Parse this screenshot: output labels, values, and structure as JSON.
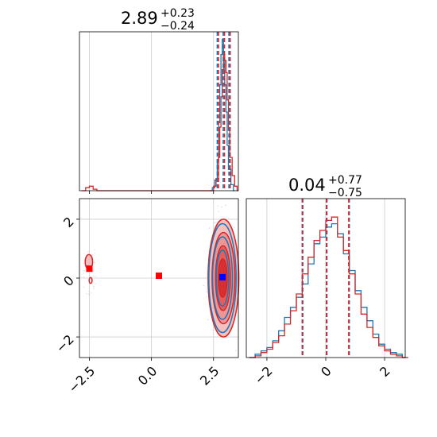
{
  "chart_data": [
    {
      "type": "histogram",
      "panel": "marginal-param-1",
      "title": "2.89",
      "title_sup": "+0.23",
      "title_sub": "−0.24",
      "xlim": [
        -2.9,
        3.5
      ],
      "xticks": [
        -2.5,
        0.0,
        2.5
      ],
      "quantile_lines": {
        "blue": [
          2.65,
          2.89,
          3.12
        ],
        "red": [
          2.7,
          2.94,
          3.17
        ]
      },
      "series": [
        {
          "color": "#1f77b4",
          "bins": [
            [
              2.35,
              0.0
            ],
            [
              2.45,
              0.02
            ],
            [
              2.55,
              0.07
            ],
            [
              2.65,
              0.2
            ],
            [
              2.7,
              0.45
            ],
            [
              2.75,
              0.7
            ],
            [
              2.8,
              0.9
            ],
            [
              2.85,
              1.0
            ],
            [
              2.9,
              0.88
            ],
            [
              2.95,
              0.7
            ],
            [
              3.0,
              0.52
            ],
            [
              3.05,
              0.3
            ],
            [
              3.1,
              0.14
            ],
            [
              3.2,
              0.04
            ],
            [
              3.3,
              0.0
            ]
          ]
        },
        {
          "color": "#d62728",
          "bins": [
            [
              -2.8,
              0.0
            ],
            [
              -2.65,
              0.02
            ],
            [
              -2.5,
              0.03
            ],
            [
              -2.35,
              0.01
            ],
            [
              -2.2,
              0.0
            ],
            [
              2.4,
              0.0
            ],
            [
              2.5,
              0.03
            ],
            [
              2.6,
              0.08
            ],
            [
              2.7,
              0.22
            ],
            [
              2.75,
              0.42
            ],
            [
              2.8,
              0.62
            ],
            [
              2.85,
              0.8
            ],
            [
              2.9,
              0.9
            ],
            [
              2.95,
              0.86
            ],
            [
              3.0,
              0.78
            ],
            [
              3.05,
              0.6
            ],
            [
              3.1,
              0.4
            ],
            [
              3.15,
              0.22
            ],
            [
              3.25,
              0.1
            ],
            [
              3.35,
              0.03
            ],
            [
              3.45,
              0.0
            ]
          ]
        }
      ]
    },
    {
      "type": "contour",
      "panel": "joint-density",
      "xlim": [
        -2.9,
        3.5
      ],
      "ylim": [
        -2.7,
        2.7
      ],
      "xticks": [
        -2.5,
        0.0,
        2.5
      ],
      "yticks": [
        -2,
        0,
        2
      ],
      "xtick_labels": [
        "−2.5",
        "0.0",
        "2.5"
      ],
      "ytick_labels": [
        "−2",
        "0",
        "2"
      ],
      "markers": [
        {
          "color": "#0000ff",
          "x": 2.86,
          "y": 0.03
        },
        {
          "color": "#ff0000",
          "x": -2.5,
          "y": 0.32
        },
        {
          "color": "#ff0000",
          "x": 0.3,
          "y": 0.08
        }
      ],
      "contours": [
        {
          "color": "#d62728",
          "cx": 2.9,
          "cy": 0.0,
          "rx": 0.62,
          "ry": 2.0,
          "fill": "#f4b5b6"
        },
        {
          "color": "#d62728",
          "cx": 2.9,
          "cy": 0.0,
          "rx": 0.46,
          "ry": 1.55,
          "fill": "#ec8d8e"
        },
        {
          "color": "#d62728",
          "cx": 2.88,
          "cy": 0.0,
          "rx": 0.3,
          "ry": 1.1,
          "fill": "#e25354"
        },
        {
          "color": "#d62728",
          "cx": 2.87,
          "cy": 0.0,
          "rx": 0.18,
          "ry": 0.65,
          "fill": "#d62728"
        },
        {
          "color": "#1f77b4",
          "cx": 2.86,
          "cy": 0.0,
          "rx": 0.55,
          "ry": 1.85,
          "fill": "none"
        },
        {
          "color": "#1f77b4",
          "cx": 2.86,
          "cy": 0.0,
          "rx": 0.4,
          "ry": 1.4,
          "fill": "none"
        },
        {
          "color": "#1f77b4",
          "cx": 2.86,
          "cy": 0.0,
          "rx": 0.25,
          "ry": 0.95,
          "fill": "none"
        },
        {
          "color": "#d62728",
          "cx": -2.52,
          "cy": 0.55,
          "rx": 0.15,
          "ry": 0.25,
          "fill": "#f4b5b6"
        },
        {
          "color": "#d62728",
          "cx": -2.45,
          "cy": -0.08,
          "rx": 0.06,
          "ry": 0.1,
          "fill": "none"
        }
      ]
    },
    {
      "type": "histogram",
      "panel": "marginal-param-2",
      "title": "0.04",
      "title_sup": "+0.77",
      "title_sub": "−0.75",
      "xlim": [
        -2.7,
        2.7
      ],
      "xticks": [
        -2,
        0,
        2
      ],
      "xtick_labels": [
        "−2",
        "0",
        "2"
      ],
      "quantile_lines": {
        "blue": [
          -0.78,
          0.04,
          0.8
        ],
        "red": [
          -0.8,
          0.02,
          0.78
        ]
      },
      "series": [
        {
          "color": "#1f77b4",
          "bins": [
            [
              -2.6,
              0.0
            ],
            [
              -2.4,
              0.02
            ],
            [
              -2.2,
              0.04
            ],
            [
              -2.0,
              0.06
            ],
            [
              -1.8,
              0.1
            ],
            [
              -1.6,
              0.16
            ],
            [
              -1.4,
              0.24
            ],
            [
              -1.2,
              0.3
            ],
            [
              -1.0,
              0.36
            ],
            [
              -0.8,
              0.44
            ],
            [
              -0.6,
              0.56
            ],
            [
              -0.4,
              0.68
            ],
            [
              -0.2,
              0.72
            ],
            [
              0.0,
              0.78
            ],
            [
              0.2,
              0.8
            ],
            [
              0.4,
              0.74
            ],
            [
              0.6,
              0.62
            ],
            [
              0.8,
              0.52
            ],
            [
              1.0,
              0.4
            ],
            [
              1.2,
              0.3
            ],
            [
              1.4,
              0.22
            ],
            [
              1.6,
              0.14
            ],
            [
              1.8,
              0.08
            ],
            [
              2.0,
              0.05
            ],
            [
              2.2,
              0.03
            ],
            [
              2.4,
              0.02
            ],
            [
              2.6,
              0.0
            ]
          ]
        },
        {
          "color": "#d62728",
          "bins": [
            [
              -2.6,
              0.0
            ],
            [
              -2.4,
              0.01
            ],
            [
              -2.2,
              0.03
            ],
            [
              -2.0,
              0.05
            ],
            [
              -1.8,
              0.09
            ],
            [
              -1.6,
              0.13
            ],
            [
              -1.4,
              0.2
            ],
            [
              -1.2,
              0.28
            ],
            [
              -1.0,
              0.38
            ],
            [
              -0.8,
              0.5
            ],
            [
              -0.6,
              0.6
            ],
            [
              -0.4,
              0.7
            ],
            [
              -0.2,
              0.76
            ],
            [
              0.0,
              0.82
            ],
            [
              0.2,
              0.84
            ],
            [
              0.4,
              0.72
            ],
            [
              0.6,
              0.64
            ],
            [
              0.8,
              0.5
            ],
            [
              1.0,
              0.38
            ],
            [
              1.2,
              0.26
            ],
            [
              1.4,
              0.18
            ],
            [
              1.6,
              0.12
            ],
            [
              1.8,
              0.07
            ],
            [
              2.0,
              0.04
            ],
            [
              2.2,
              0.02
            ],
            [
              2.4,
              0.01
            ],
            [
              2.6,
              0.0
            ]
          ]
        }
      ]
    }
  ]
}
